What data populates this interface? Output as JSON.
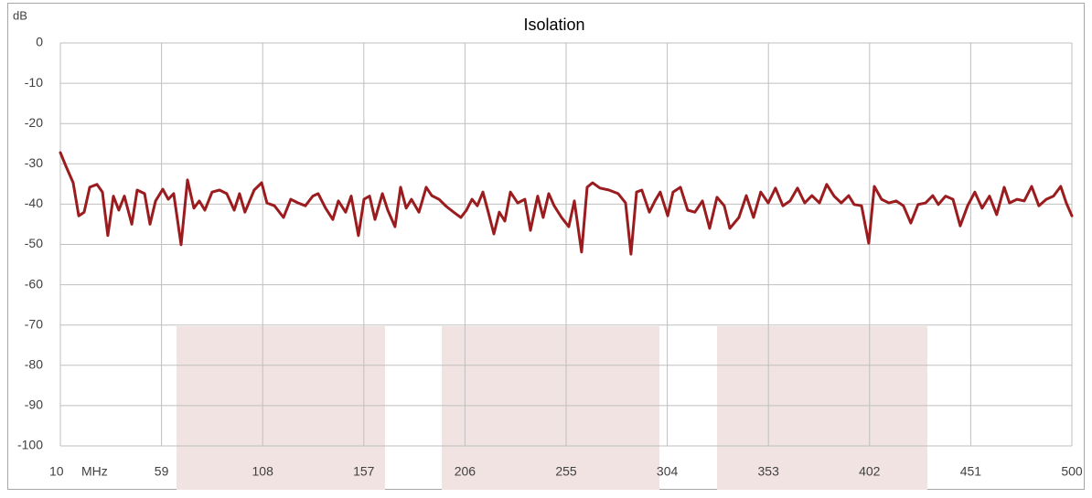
{
  "chart_data": {
    "type": "line",
    "title": "Isolation",
    "x_label": "MHz",
    "y_label": "dB",
    "x": [
      10,
      12.7,
      16.2,
      18.9,
      21.5,
      24.2,
      27.7,
      30.4,
      33.0,
      35.7,
      38.3,
      41.0,
      44.6,
      47.2,
      50.8,
      53.4,
      56.1,
      59.6,
      62.3,
      64.9,
      68.5,
      71.6,
      74.7,
      77.3,
      80.0,
      83.5,
      87.1,
      90.6,
      94.2,
      96.8,
      99.4,
      103.9,
      107.5,
      110.1,
      113.7,
      118.1,
      121.6,
      125.2,
      128.7,
      132.3,
      134.9,
      138.5,
      142.0,
      144.7,
      148.2,
      150.9,
      154.4,
      157.1,
      159.8,
      162.4,
      166.0,
      168.6,
      172.1,
      174.8,
      177.5,
      180.1,
      183.7,
      187.2,
      189.9,
      193.4,
      197.0,
      200.5,
      204.0,
      206.7,
      209.4,
      212.0,
      214.7,
      217.3,
      220.0,
      222.6,
      225.3,
      228.0,
      231.5,
      235.0,
      237.7,
      241.2,
      243.9,
      246.6,
      249.2,
      252.8,
      256.3,
      259.0,
      262.5,
      265.2,
      267.8,
      271.4,
      275.8,
      280.2,
      283.8,
      286.4,
      289.1,
      291.7,
      295.3,
      298.0,
      300.6,
      304.2,
      306.8,
      310.4,
      313.9,
      317.4,
      321.0,
      324.5,
      328.1,
      331.6,
      334.3,
      338.7,
      342.3,
      345.8,
      349.3,
      352.9,
      356.4,
      360.0,
      363.5,
      367.1,
      370.6,
      374.1,
      377.7,
      381.2,
      384.8,
      388.3,
      391.9,
      394.5,
      398.1,
      401.6,
      404.3,
      407.8,
      411.4,
      414.9,
      418.4,
      422.0,
      425.5,
      429.1,
      432.6,
      435.3,
      438.8,
      442.4,
      445.9,
      449.5,
      453.0,
      456.5,
      460.1,
      463.6,
      467.2,
      469.8,
      473.4,
      476.9,
      480.5,
      484.0,
      487.6,
      491.1,
      494.6,
      497.3,
      500
    ],
    "series": [
      {
        "name": "Isolation",
        "color": "#9b1c1f",
        "values": [
          -27.2,
          -30.6,
          -34.7,
          -42.9,
          -42,
          -35.8,
          -35.1,
          -37,
          -47.8,
          -38,
          -41.5,
          -38,
          -45,
          -36.5,
          -37.4,
          -45,
          -39.2,
          -36.3,
          -38.8,
          -37.4,
          -50.1,
          -34,
          -41,
          -39.2,
          -41.5,
          -37,
          -36.5,
          -37.4,
          -41.5,
          -37.4,
          -42,
          -36.5,
          -34.7,
          -39.7,
          -40.4,
          -43.3,
          -38.8,
          -39.7,
          -40.4,
          -38,
          -37.4,
          -41,
          -43.8,
          -39.2,
          -42,
          -38,
          -47.8,
          -38.8,
          -38,
          -43.8,
          -37.4,
          -41.5,
          -45.6,
          -35.8,
          -41,
          -38.8,
          -42,
          -35.8,
          -37.9,
          -38.8,
          -40.6,
          -42,
          -43.3,
          -41.5,
          -38.8,
          -40.4,
          -37,
          -42,
          -47.4,
          -42,
          -44.2,
          -37,
          -39.7,
          -38.8,
          -46.5,
          -38,
          -43.3,
          -37.4,
          -40.4,
          -43.3,
          -45.6,
          -39.2,
          -51.9,
          -35.8,
          -34.7,
          -36,
          -36.5,
          -37.4,
          -39.7,
          -52.4,
          -37,
          -36.5,
          -42,
          -39.2,
          -37,
          -42.9,
          -37,
          -35.8,
          -41.5,
          -42,
          -39.2,
          -46,
          -38.3,
          -40.4,
          -46,
          -43.3,
          -37.9,
          -43.3,
          -37,
          -39.7,
          -36,
          -40.4,
          -39.2,
          -36,
          -39.7,
          -37.9,
          -39.7,
          -35.1,
          -38,
          -39.7,
          -37.9,
          -40.1,
          -40.4,
          -49.7,
          -35.6,
          -38.8,
          -39.7,
          -39.2,
          -40.4,
          -44.7,
          -40.1,
          -39.7,
          -37.9,
          -40.1,
          -38,
          -38.8,
          -45.4,
          -40.4,
          -37,
          -41,
          -38,
          -42.6,
          -35.8,
          -39.7,
          -38.8,
          -39.2,
          -35.6,
          -40.4,
          -38.8,
          -38,
          -35.6,
          -39.7,
          -42.9
        ]
      }
    ],
    "xlim": [
      10,
      500
    ],
    "xticks": [
      10,
      59,
      108,
      157,
      206,
      255,
      304,
      353,
      402,
      451,
      500
    ],
    "ylim": [
      -100,
      0
    ],
    "yticks": [
      0,
      -10,
      -20,
      -30,
      -40,
      -50,
      -60,
      -70,
      -80,
      -90,
      -100
    ],
    "grid": true
  }
}
